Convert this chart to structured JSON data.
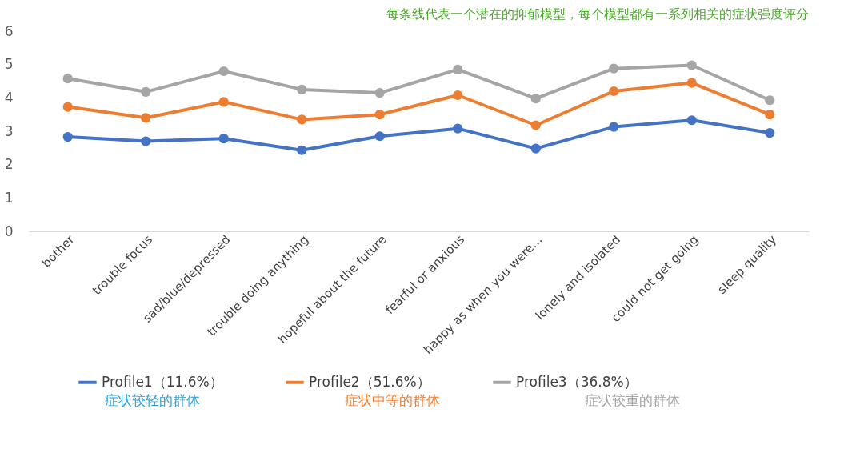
{
  "chart_data": {
    "type": "line",
    "title": "每条线代表一个潜在的抑郁模型，每个模型都有一系列相关的症状强度评分",
    "categories": [
      "bother",
      "trouble focus",
      "sad/blue/depressed",
      "trouble doing anything",
      "hopeful about the future",
      "fearful or anxious",
      "happy as when you were…",
      "lonely and isolated",
      "could not get going",
      "sleep quality"
    ],
    "series": [
      {
        "name": "Profile1（11.6%）",
        "color": "#4472c4",
        "values": [
          2.83,
          2.7,
          2.78,
          2.43,
          2.85,
          3.08,
          2.48,
          3.13,
          3.33,
          2.95
        ]
      },
      {
        "name": "Profile2（51.6%）",
        "color": "#ed7d31",
        "values": [
          3.73,
          3.4,
          3.88,
          3.35,
          3.5,
          4.08,
          3.18,
          4.2,
          4.45,
          3.5
        ]
      },
      {
        "name": "Profile3（36.8%）",
        "color": "#a5a5a5",
        "values": [
          4.58,
          4.18,
          4.8,
          4.25,
          4.15,
          4.85,
          3.98,
          4.88,
          4.98,
          3.93
        ]
      }
    ],
    "annotations": [
      "症状较轻的群体",
      "症状中等的群体",
      "症状较重的群体"
    ],
    "ylim": [
      0,
      6
    ],
    "yticks": [
      0,
      1,
      2,
      3,
      4,
      5,
      6
    ],
    "grid": false,
    "legend": "bottom",
    "marker": "circle",
    "line_style": "solid"
  }
}
